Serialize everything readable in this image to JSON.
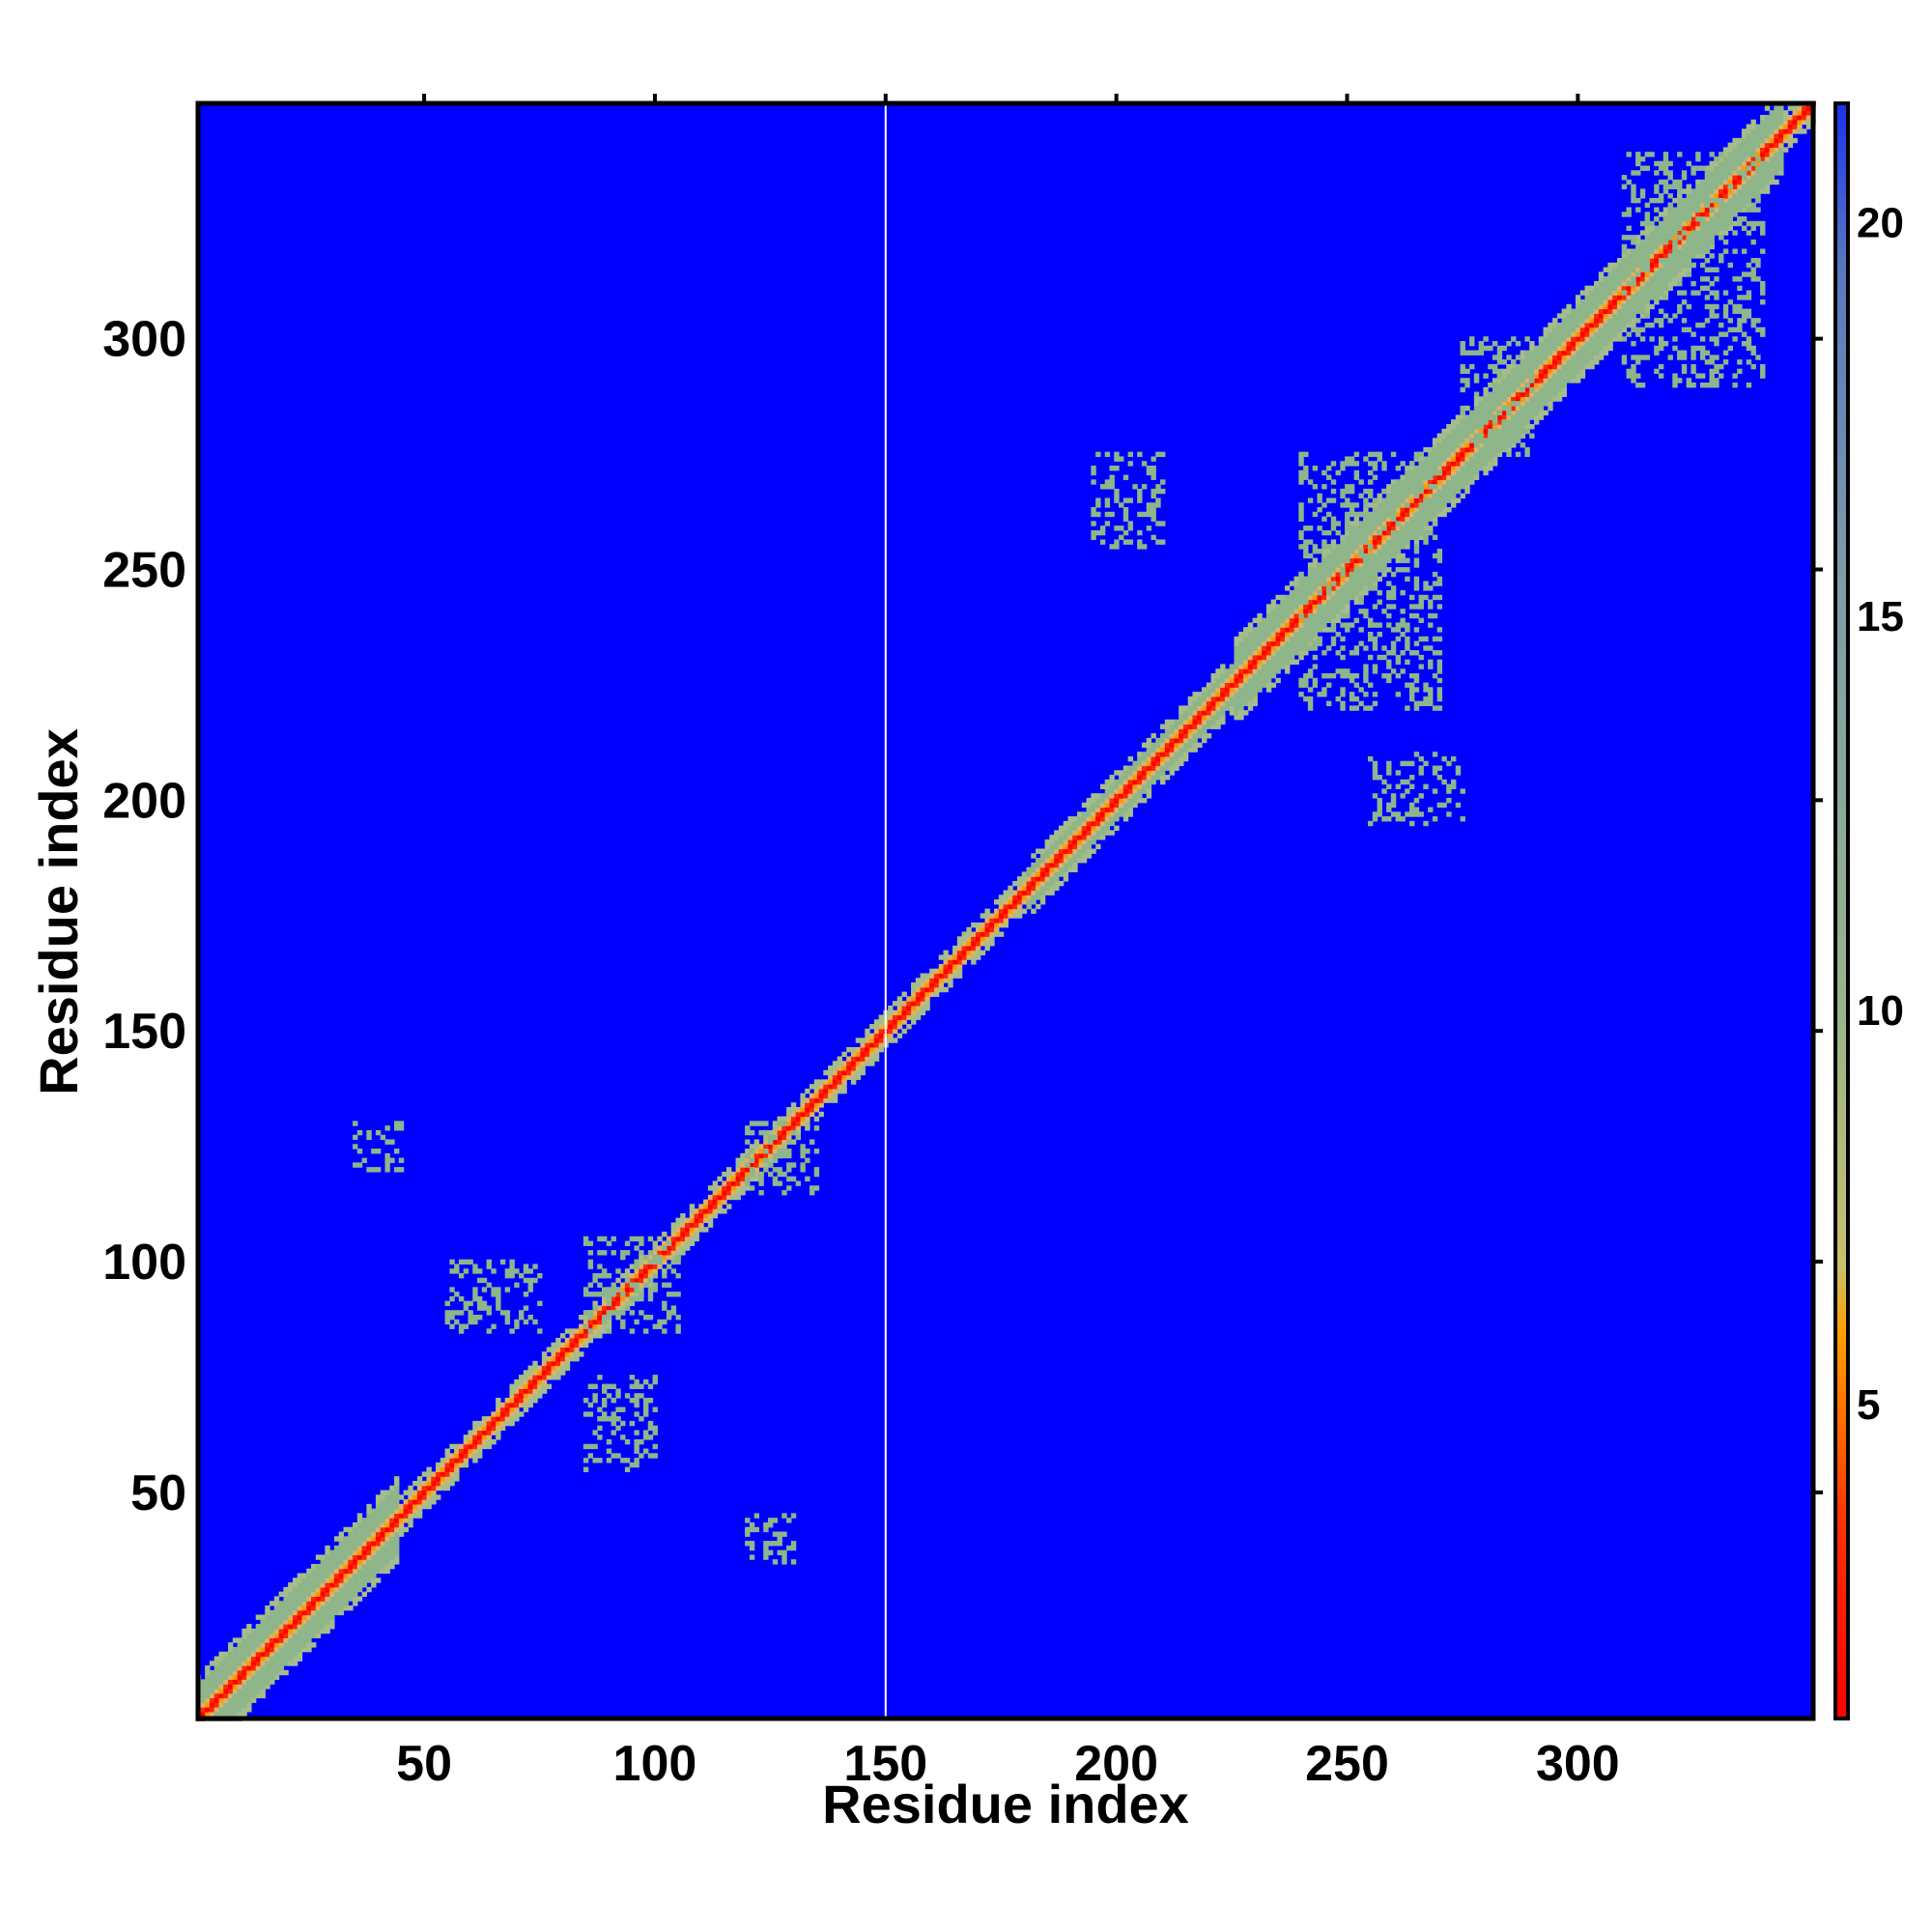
{
  "chart_data": {
    "type": "heatmap",
    "title": "",
    "xlabel": "Residue index",
    "ylabel": "Residue index",
    "xlim": [
      1,
      351
    ],
    "ylim": [
      1,
      351
    ],
    "x_ticks": [
      "50",
      "100",
      "150",
      "200",
      "250",
      "300"
    ],
    "y_ticks": [
      "50",
      "100",
      "150",
      "200",
      "250",
      "300"
    ],
    "colorbar": {
      "range": [
        1,
        21.5
      ],
      "ticks": [
        "5",
        "10",
        "15",
        "20"
      ],
      "colors": {
        "low": "#ff0000",
        "mid": "#ff9900",
        "band": "#8fb58a",
        "high_edge": "#5a7fbf",
        "background": "#0000ff"
      }
    },
    "features": {
      "diagonal": "residues 1-351, value ~1-3 (red) with orange shoulder ~5-8 and green band ~9-13",
      "white_column_at_residue": 150,
      "offdiagonal_clusters": [
        {
          "x": [
            240,
            270
          ],
          "y": [
            220,
            275
          ],
          "value": 12
        },
        {
          "x": [
            310,
            340
          ],
          "y": [
            290,
            340
          ],
          "value": 12
        },
        {
          "x": [
            195,
            210
          ],
          "y": [
            255,
            275
          ],
          "value": 12
        },
        {
          "x": [
            255,
            275
          ],
          "y": [
            195,
            210
          ],
          "value": 12
        },
        {
          "x": [
            275,
            290
          ],
          "y": [
            275,
            300
          ],
          "value": 12
        },
        {
          "x": [
            85,
            105
          ],
          "y": [
            85,
            105
          ],
          "value": 11
        },
        {
          "x": [
            120,
            135
          ],
          "y": [
            115,
            130
          ],
          "value": 11
        },
        {
          "x": [
            35,
            45
          ],
          "y": [
            120,
            130
          ],
          "value": 12
        },
        {
          "x": [
            120,
            130
          ],
          "y": [
            35,
            45
          ],
          "value": 12
        },
        {
          "x": [
            55,
            75
          ],
          "y": [
            85,
            100
          ],
          "value": 12
        },
        {
          "x": [
            85,
            100
          ],
          "y": [
            55,
            75
          ],
          "value": 12
        }
      ]
    }
  }
}
